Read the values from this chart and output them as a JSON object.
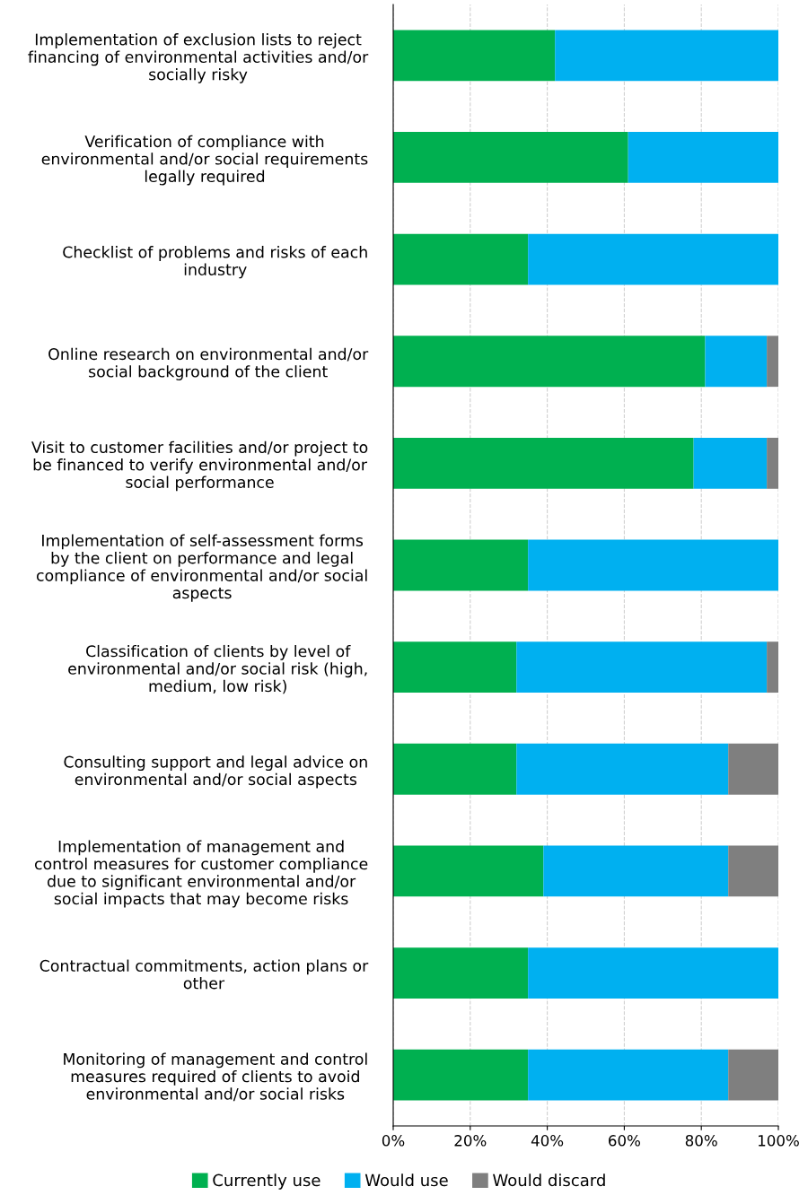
{
  "chart_data": {
    "type": "bar",
    "orientation": "horizontal",
    "stacked": true,
    "categories": [
      "Implementation of exclusion lists to reject\nfinancing of environmental activities and/or\nsocially risky",
      "Verification of compliance with\nenvironmental and/or social requirements\nlegally required",
      "Checklist of problems and risks of each\nindustry",
      "Online research on environmental and/or\nsocial background of the client",
      "Visit to customer facilities and/or project to\nbe financed to verify environmental and/or\nsocial performance",
      "Implementation of self-assessment forms\nby the client on performance and legal\ncompliance of environmental and/or social\naspects",
      "Classification of clients by level of\nenvironmental and/or social risk (high,\nmedium, low risk)",
      "Consulting support and legal advice on\nenvironmental and/or social aspects",
      "Implementation of management and\ncontrol measures for customer compliance\ndue to significant environmental and/or\nsocial impacts that may become risks",
      "Contractual commitments, action plans or\nother",
      "Monitoring of management and control\nmeasures required of clients to avoid\nenvironmental and/or social risks"
    ],
    "series": [
      {
        "name": "Currently use",
        "color": "#00b050",
        "values": [
          42,
          61,
          35,
          81,
          78,
          35,
          32,
          32,
          39,
          35,
          35
        ]
      },
      {
        "name": "Would use",
        "color": "#00b0f0",
        "values": [
          58,
          39,
          65,
          16,
          19,
          65,
          65,
          55,
          48,
          65,
          52
        ]
      },
      {
        "name": "Would discard",
        "color": "#7f7f7f",
        "values": [
          0,
          0,
          0,
          3,
          3,
          0,
          3,
          13,
          13,
          0,
          13
        ]
      }
    ],
    "xlim": [
      0,
      100
    ],
    "xticks": [
      {
        "value": 0,
        "label": "0%"
      },
      {
        "value": 20,
        "label": "20%"
      },
      {
        "value": 40,
        "label": "40%"
      },
      {
        "value": 60,
        "label": "60%"
      },
      {
        "value": 80,
        "label": "80%"
      },
      {
        "value": 100,
        "label": "100%"
      }
    ],
    "grid": "x",
    "legend": "bottom"
  }
}
